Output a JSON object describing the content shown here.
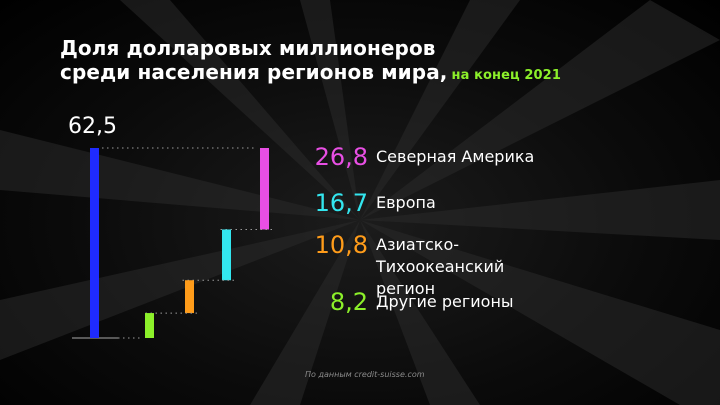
{
  "chart_data": {
    "type": "bar",
    "title_line1": "Доля долларовых миллионеров",
    "title_line2": "среди населения регионов мира,",
    "subtitle": "на конец 2021",
    "total": 62.5,
    "total_label": "62,5",
    "total_color": "#1f2bff",
    "series": [
      {
        "name": "Северная Америка",
        "value": 26.8,
        "label": "26,8",
        "color": "#e84fe4"
      },
      {
        "name": "Европа",
        "value": 16.7,
        "label": "16,7",
        "color": "#33e6ef"
      },
      {
        "name": "Азиатско-Тихоокеанский регион",
        "value": 10.8,
        "label": "10,8",
        "color": "#ff9c1a"
      },
      {
        "name": "Другие регионы",
        "value": 8.2,
        "label": "8,2",
        "color": "#8cf02a"
      }
    ]
  },
  "source": "По данным credit-suisse.com"
}
